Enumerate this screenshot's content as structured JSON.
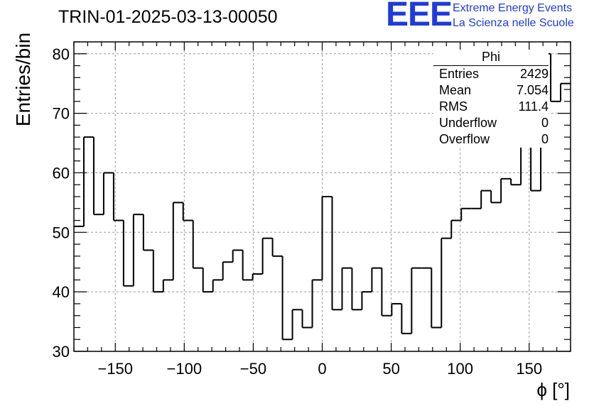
{
  "header": {
    "title": "TRIN-01-2025-03-13-00050",
    "logo_text": "EEE",
    "logo_line1": "Extreme Energy Events",
    "logo_line2": "La Scienza nelle Scuole"
  },
  "stats_box": {
    "title": "Phi",
    "rows": [
      {
        "label": "Entries",
        "value": "2429"
      },
      {
        "label": "Mean",
        "value": "7.054"
      },
      {
        "label": "RMS",
        "value": "111.4"
      },
      {
        "label": "Underflow",
        "value": "0"
      },
      {
        "label": "Overflow",
        "value": "0"
      }
    ]
  },
  "colors": {
    "line": "#000000",
    "grid": "#999999",
    "logo": "#1f3bdb"
  },
  "chart_data": {
    "type": "histogram",
    "xlabel": "ϕ [°]",
    "ylabel": "Entries/bin",
    "xlim": [
      -180,
      180
    ],
    "ylim": [
      30,
      82
    ],
    "bin_width": 7.2,
    "x_ticks": [
      -150,
      -100,
      -50,
      0,
      50,
      100,
      150
    ],
    "x_tick_labels": [
      "−150",
      "−100",
      "−50",
      "0",
      "50",
      "100",
      "150"
    ],
    "y_ticks": [
      30,
      40,
      50,
      60,
      70,
      80
    ],
    "y_tick_labels": [
      "30",
      "40",
      "50",
      "60",
      "70",
      "80"
    ],
    "grid": true,
    "bin_edges": [
      -180,
      -172.8,
      -165.6,
      -158.4,
      -151.2,
      -144,
      -136.8,
      -129.6,
      -122.4,
      -115.2,
      -108,
      -100.8,
      -93.6,
      -86.4,
      -79.2,
      -72,
      -64.8,
      -57.6,
      -50.4,
      -43.2,
      -36,
      -28.8,
      -21.6,
      -14.4,
      -7.2,
      0,
      7.2,
      14.4,
      21.6,
      28.8,
      36,
      43.2,
      50.4,
      57.6,
      64.8,
      72,
      79.2,
      86.4,
      93.6,
      100.8,
      108,
      115.2,
      122.4,
      129.6,
      136.8,
      144,
      151.2,
      158.4,
      165.6,
      172.8,
      180
    ],
    "values": [
      51,
      66,
      53,
      60,
      52,
      41,
      53,
      47,
      40,
      42,
      55,
      52,
      44,
      40,
      42,
      45,
      47,
      42,
      43,
      49,
      46,
      32,
      37,
      34,
      42,
      56,
      37,
      44,
      37,
      40,
      44,
      36,
      38,
      33,
      44,
      44,
      34,
      49,
      52,
      54,
      54,
      57,
      55,
      59,
      58,
      65,
      57,
      80,
      72,
      75
    ]
  }
}
